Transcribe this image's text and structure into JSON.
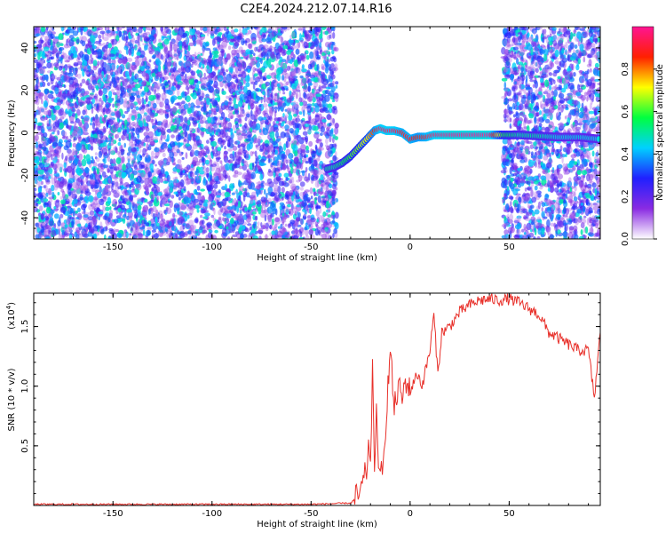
{
  "title": "C2E4.2024.212.07.14.R16",
  "chart_data": [
    {
      "type": "heatmap",
      "xlabel": "Height of straight line (km)",
      "ylabel": "Frequency (Hz)",
      "xlim": [
        -190,
        96
      ],
      "ylim": [
        -50,
        50
      ],
      "xticks": [
        -150,
        -100,
        -50,
        0,
        50
      ],
      "yticks": [
        -40,
        -20,
        0,
        20,
        40
      ],
      "colorbar": {
        "label": "Normalized spectral amplitude",
        "range": [
          0,
          1
        ],
        "ticks": [
          "0.0",
          "0.2",
          "0.4",
          "0.6",
          "0.8"
        ],
        "tick_values": [
          0.0,
          0.2,
          0.4,
          0.6,
          0.8
        ],
        "colors": [
          "#ffffff",
          "#8a2be2",
          "#2020ff",
          "#00d0ff",
          "#00ff40",
          "#ffff00",
          "#ff2000",
          "#ff1493"
        ]
      },
      "noise_regions": [
        {
          "x": [
            -190,
            -37
          ],
          "y": [
            -50,
            50
          ]
        },
        {
          "x": [
            47,
            96
          ],
          "y": [
            -50,
            50
          ]
        }
      ],
      "signal_trace": {
        "x": [
          -42,
          -38,
          -34,
          -30,
          -26,
          -22,
          -18,
          -15,
          -12,
          -8,
          -4,
          0,
          4,
          8,
          12,
          20,
          30,
          40,
          47,
          55,
          65,
          75,
          85,
          96
        ],
        "y": [
          -17,
          -16,
          -14,
          -11,
          -7,
          -3,
          1,
          2,
          1,
          1,
          0,
          -3,
          -2,
          -2,
          -1,
          -1,
          -1,
          -1,
          -1,
          -1,
          -1.5,
          -2,
          -2,
          -3
        ],
        "amplitude": [
          0.5,
          0.5,
          0.55,
          0.6,
          0.65,
          0.7,
          0.85,
          0.95,
          0.95,
          0.95,
          0.9,
          0.9,
          0.85,
          0.9,
          0.95,
          1.0,
          1.0,
          1.0,
          0.6,
          0.5,
          0.5,
          0.45,
          0.45,
          0.45
        ]
      }
    },
    {
      "type": "line",
      "xlabel": "Height of straight line (km)",
      "ylabel": "SNR (10 * v/v)",
      "yscale_label": "(x10",
      "yscale_exponent": "4",
      "yscale_close": ")",
      "xlim": [
        -190,
        96
      ],
      "ylim": [
        0,
        1.78
      ],
      "xticks": [
        -150,
        -100,
        -50,
        0,
        50
      ],
      "yticks": [
        0.5,
        1.0,
        1.5
      ],
      "ytick_labels": [
        "0.5",
        "1.0",
        "1.5"
      ],
      "color": "#e8302a",
      "series": [
        {
          "x": [
            -190,
            -150,
            -100,
            -50,
            -30,
            -25,
            -22,
            -21,
            -20,
            -19,
            -18,
            -17,
            -16,
            -15,
            -14,
            -12,
            -10,
            -8,
            -6,
            -4,
            -2,
            0,
            2,
            4,
            6,
            8,
            10,
            12,
            14,
            16,
            20,
            25,
            30,
            35,
            40,
            45,
            50,
            55,
            60,
            65,
            70,
            75,
            80,
            85,
            90,
            93,
            96
          ],
          "y": [
            0.01,
            0.01,
            0.01,
            0.01,
            0.02,
            0.1,
            0.3,
            0.5,
            0.25,
            1.2,
            0.35,
            0.8,
            0.2,
            0.4,
            0.15,
            0.8,
            1.3,
            0.8,
            1.0,
            0.9,
            1.05,
            0.95,
            1.05,
            1.1,
            1.0,
            1.15,
            1.3,
            1.6,
            1.1,
            1.45,
            1.5,
            1.62,
            1.68,
            1.72,
            1.73,
            1.72,
            1.73,
            1.7,
            1.65,
            1.6,
            1.45,
            1.4,
            1.35,
            1.3,
            1.3,
            0.9,
            1.45
          ]
        }
      ]
    }
  ]
}
